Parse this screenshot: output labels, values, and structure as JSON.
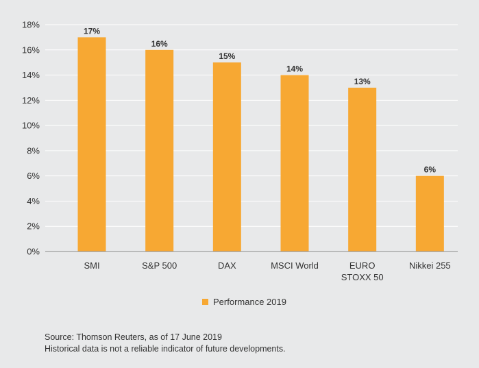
{
  "colors": {
    "bar": "#f7a833",
    "grid": "#ffffff",
    "background": "#e8e9ea",
    "text": "#333333"
  },
  "chart_data": {
    "type": "bar",
    "categories": [
      [
        "SMI"
      ],
      [
        "S&P 500"
      ],
      [
        "DAX"
      ],
      [
        "MSCI World"
      ],
      [
        "EURO",
        "STOXX 50"
      ],
      [
        "Nikkei 255"
      ]
    ],
    "series": [
      {
        "name": "Performance 2019",
        "values": [
          17,
          16,
          15,
          14,
          13,
          6
        ],
        "labels": [
          "17%",
          "16%",
          "15%",
          "14%",
          "13%",
          "6%"
        ]
      }
    ],
    "y_ticks": [
      0,
      2,
      4,
      6,
      8,
      10,
      12,
      14,
      16,
      18
    ],
    "y_tick_labels": [
      "0%",
      "2%",
      "4%",
      "6%",
      "8%",
      "10%",
      "12%",
      "14%",
      "16%",
      "18%"
    ],
    "ylim": [
      0,
      18
    ],
    "grid": true,
    "legend_position": "bottom-center",
    "title": "",
    "xlabel": "",
    "ylabel": ""
  },
  "footnote": {
    "source": "Source: Thomson Reuters, as of 17 June 2019",
    "disclaimer": "Historical data is not a reliable indicator of future developments."
  }
}
